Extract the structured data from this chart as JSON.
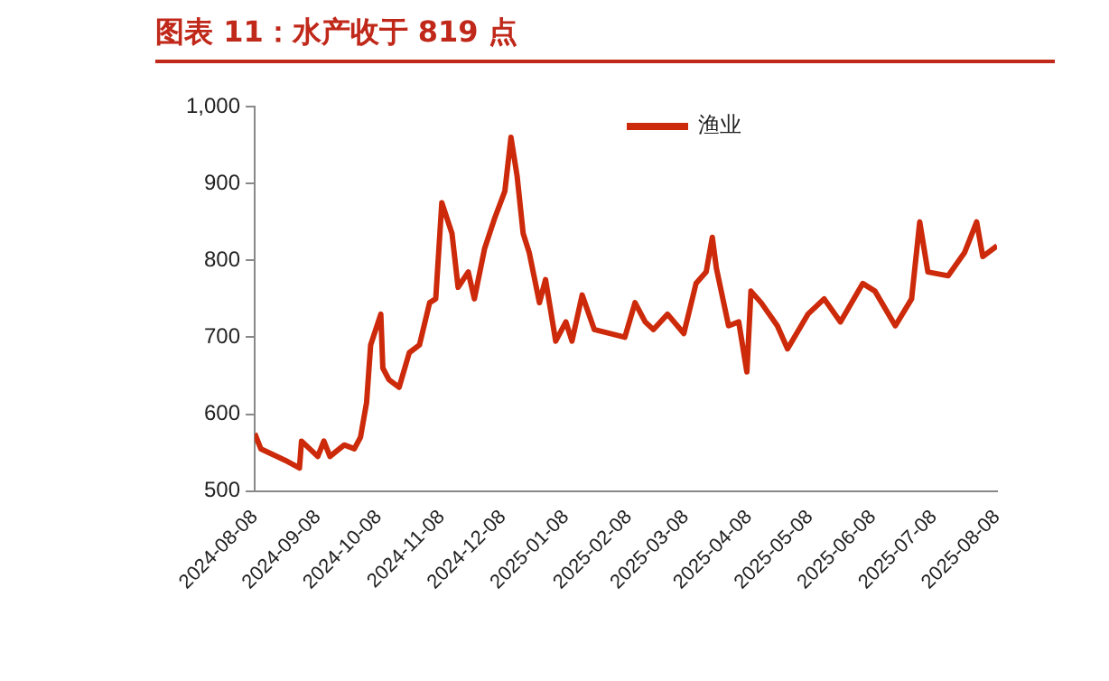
{
  "chart_data": {
    "type": "line",
    "title": "图表 11：水产收于 819 点",
    "x": [
      "2024-08-08",
      "2024-08-11",
      "2024-08-15",
      "2024-08-23",
      "2024-08-30",
      "2024-08-31",
      "2024-09-08",
      "2024-09-11",
      "2024-09-14",
      "2024-09-21",
      "2024-09-26",
      "2024-09-29",
      "2024-10-02",
      "2024-10-04",
      "2024-10-09",
      "2024-10-10",
      "2024-10-13",
      "2024-10-18",
      "2024-10-23",
      "2024-10-28",
      "2024-11-02",
      "2024-11-05",
      "2024-11-08",
      "2024-11-13",
      "2024-11-16",
      "2024-11-21",
      "2024-11-24",
      "2024-11-29",
      "2024-12-04",
      "2024-12-09",
      "2024-12-12",
      "2024-12-15",
      "2024-12-18",
      "2024-12-21",
      "2024-12-26",
      "2024-12-29",
      "2025-01-03",
      "2025-01-08",
      "2025-01-11",
      "2025-01-16",
      "2025-01-22",
      "2025-02-06",
      "2025-02-11",
      "2025-02-16",
      "2025-02-20",
      "2025-02-27",
      "2025-03-07",
      "2025-03-13",
      "2025-03-18",
      "2025-03-21",
      "2025-03-23",
      "2025-03-29",
      "2025-04-03",
      "2025-04-07",
      "2025-04-09",
      "2025-04-14",
      "2025-04-22",
      "2025-04-27",
      "2025-05-07",
      "2025-05-15",
      "2025-05-23",
      "2025-06-03",
      "2025-06-09",
      "2025-06-19",
      "2025-06-27",
      "2025-07-01",
      "2025-07-05",
      "2025-07-15",
      "2025-07-23",
      "2025-07-29",
      "2025-08-01",
      "2025-08-08"
    ],
    "series": [
      {
        "name": "渔业",
        "color": "#cc2a0a",
        "values": [
          575,
          555,
          550,
          540,
          530,
          565,
          545,
          565,
          545,
          560,
          555,
          570,
          615,
          690,
          730,
          660,
          645,
          635,
          680,
          690,
          745,
          750,
          875,
          835,
          765,
          785,
          750,
          815,
          855,
          890,
          960,
          910,
          835,
          810,
          745,
          775,
          695,
          720,
          695,
          755,
          710,
          700,
          745,
          720,
          710,
          730,
          705,
          770,
          785,
          830,
          790,
          715,
          720,
          655,
          760,
          745,
          715,
          685,
          730,
          750,
          720,
          770,
          760,
          715,
          750,
          850,
          785,
          780,
          810,
          850,
          805,
          819
        ]
      }
    ],
    "xlim": [
      "2024-08-08",
      "2025-08-08"
    ],
    "xticks": [
      "2024-08-08",
      "2024-09-08",
      "2024-10-08",
      "2024-11-08",
      "2024-12-08",
      "2025-01-08",
      "2025-02-08",
      "2025-03-08",
      "2025-04-08",
      "2025-05-08",
      "2025-06-08",
      "2025-07-08",
      "2025-08-08"
    ],
    "ylim": [
      500,
      1000
    ],
    "yticks": [
      500,
      600,
      700,
      800,
      900,
      {
        "value": 1000,
        "label": "1,000"
      }
    ],
    "grid": false,
    "legend": "top right",
    "marker": "none",
    "line_style": "solid"
  }
}
